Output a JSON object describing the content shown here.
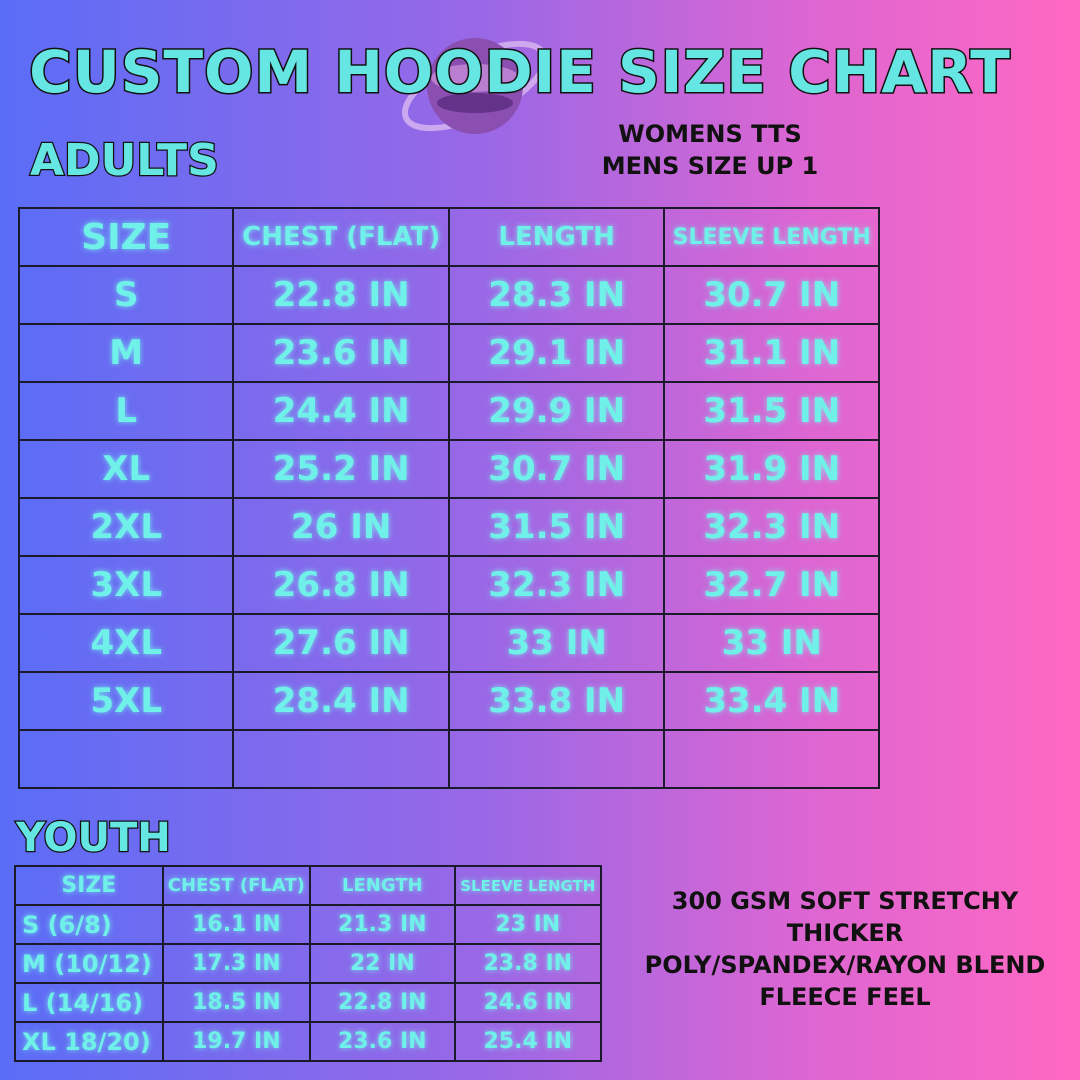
{
  "title": "Custom Hoodie Size Chart",
  "icons": {
    "planet": "planet-icon"
  },
  "fit_note": [
    "WOMENS TTS",
    "MENS SIZE UP 1"
  ],
  "adults": {
    "label": "ADULTS",
    "headers": [
      "SIZE",
      "CHEST (FLAT)",
      "LENGTH",
      "SLEEVE LENGTH"
    ],
    "rows": [
      [
        "S",
        "22.8 IN",
        "28.3 IN",
        "30.7 IN"
      ],
      [
        "M",
        "23.6 IN",
        "29.1 IN",
        "31.1 IN"
      ],
      [
        "L",
        "24.4 IN",
        "29.9 IN",
        "31.5 IN"
      ],
      [
        "XL",
        "25.2 IN",
        "30.7 IN",
        "31.9 IN"
      ],
      [
        "2XL",
        "26 IN",
        "31.5 IN",
        "32.3 IN"
      ],
      [
        "3XL",
        "26.8 IN",
        "32.3 IN",
        "32.7 IN"
      ],
      [
        "4XL",
        "27.6 IN",
        "33 IN",
        "33 IN"
      ],
      [
        "5XL",
        "28.4 IN",
        "33.8 IN",
        "33.4 IN"
      ],
      [
        "",
        "",
        "",
        ""
      ]
    ]
  },
  "youth": {
    "label": "YOUTH",
    "headers": [
      "SIZE",
      "CHEST (FLAT)",
      "LENGTH",
      "SLEEVE LENGTH"
    ],
    "rows": [
      [
        "S (6/8)",
        "16.1 IN",
        "21.3 IN",
        "23 IN"
      ],
      [
        "M (10/12)",
        "17.3 IN",
        "22 IN",
        "23.8 IN"
      ],
      [
        "L (14/16)",
        "18.5 IN",
        "22.8 IN",
        "24.6 IN"
      ],
      [
        "XL 18/20)",
        "19.7 IN",
        "23.6 IN",
        "25.4 IN"
      ]
    ]
  },
  "fabric_note": [
    "300 GSM SOFT STRETCHY",
    "THICKER",
    "POLY/SPANDEX/RAYON BLEND",
    "FLEECE FEEL"
  ]
}
